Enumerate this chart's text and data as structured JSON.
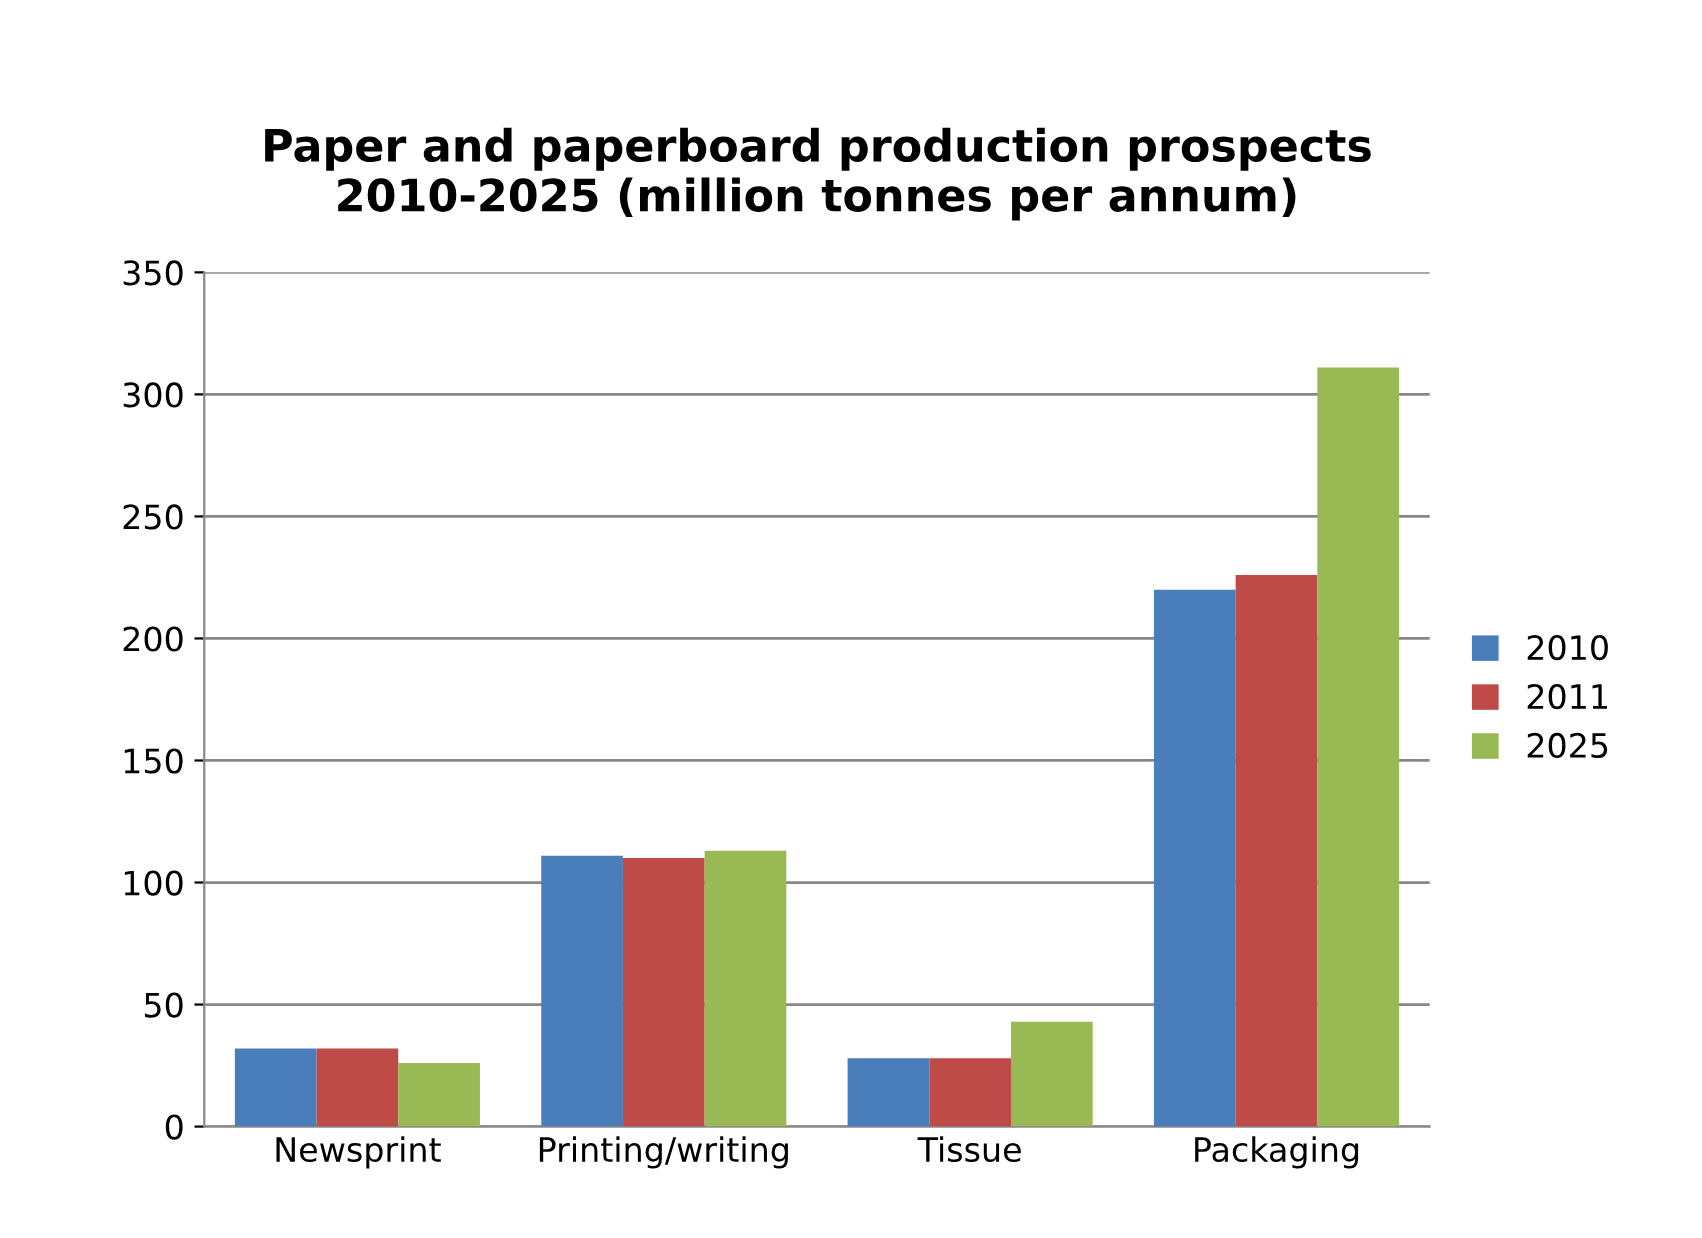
{
  "chart_data": {
    "type": "bar",
    "title": "Paper and paperboard production prospects\n2010-2025 (million tonnes per annum)",
    "categories": [
      "Newsprint",
      "Printing/writing",
      "Tissue",
      "Packaging"
    ],
    "series": [
      {
        "name": "2010",
        "color": "#4a7ebb",
        "values": [
          32,
          111,
          28,
          220
        ]
      },
      {
        "name": "2011",
        "color": "#be4b48",
        "values": [
          32,
          110,
          28,
          226
        ]
      },
      {
        "name": "2025",
        "color": "#98b954",
        "values": [
          26,
          113,
          43,
          311
        ]
      }
    ],
    "ylim": [
      0,
      350
    ],
    "yticks": [
      0,
      50,
      100,
      150,
      200,
      250,
      300,
      350
    ],
    "grid": "y",
    "legend": "right"
  }
}
